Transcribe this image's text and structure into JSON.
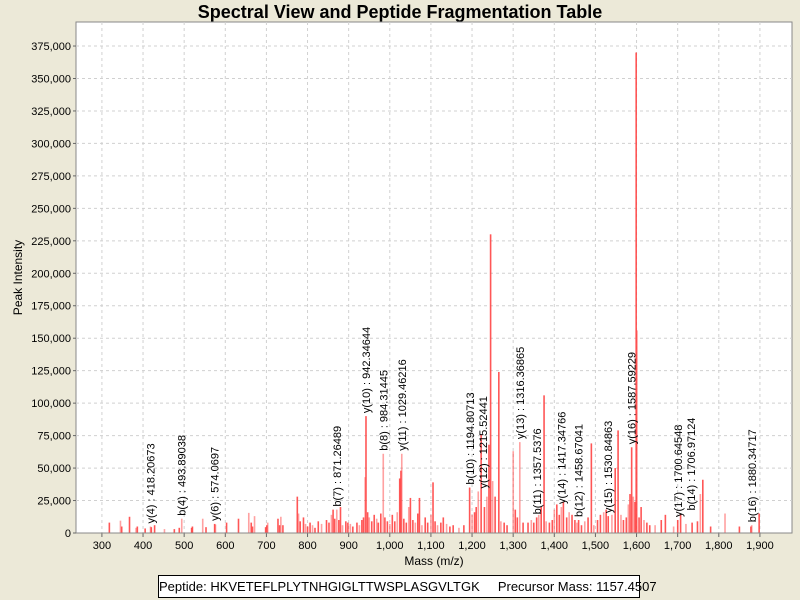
{
  "chart_data": {
    "type": "bar",
    "title": "Spectral View and Peptide Fragmentation Table",
    "xlabel": "Mass (m/z)",
    "ylabel": "Peak Intensity",
    "xlim": [
      237,
      1978
    ],
    "ylim": [
      0,
      393500
    ],
    "grid": true,
    "bar_color": "#ff4444",
    "x_ticks": [
      300,
      400,
      500,
      600,
      700,
      800,
      900,
      1000,
      1100,
      1200,
      1300,
      1400,
      1500,
      1600,
      1700,
      1800,
      1900
    ],
    "x_tick_labels": [
      "300",
      "400",
      "500",
      "600",
      "700",
      "800",
      "900",
      "1,000",
      "1,100",
      "1,200",
      "1,300",
      "1,400",
      "1,500",
      "1,600",
      "1,700",
      "1,800",
      "1,900"
    ],
    "y_ticks": [
      0,
      25000,
      50000,
      75000,
      100000,
      125000,
      150000,
      175000,
      200000,
      225000,
      250000,
      275000,
      300000,
      325000,
      350000,
      375000
    ],
    "y_tick_labels": [
      "0",
      "25,000",
      "50,000",
      "75,000",
      "100,000",
      "125,000",
      "150,000",
      "175,000",
      "200,000",
      "225,000",
      "250,000",
      "275,000",
      "300,000",
      "325,000",
      "350,000",
      "375,000"
    ],
    "peaks": [
      [
        318,
        8000
      ],
      [
        345,
        9500
      ],
      [
        348,
        5000
      ],
      [
        367,
        12500
      ],
      [
        383,
        4000
      ],
      [
        386,
        5000
      ],
      [
        405,
        3500
      ],
      [
        418,
        5000
      ],
      [
        420,
        4500
      ],
      [
        428,
        6000
      ],
      [
        452,
        3000
      ],
      [
        476,
        3000
      ],
      [
        488,
        4000
      ],
      [
        494,
        11000
      ],
      [
        518,
        4000
      ],
      [
        520,
        5000
      ],
      [
        545,
        11000
      ],
      [
        553,
        4500
      ],
      [
        574,
        7000
      ],
      [
        576,
        6500
      ],
      [
        603,
        8000
      ],
      [
        632,
        11000
      ],
      [
        657,
        15500
      ],
      [
        663,
        8000
      ],
      [
        666,
        5000
      ],
      [
        671,
        13000
      ],
      [
        698,
        4500
      ],
      [
        701,
        6000
      ],
      [
        703,
        8000
      ],
      [
        728,
        11000
      ],
      [
        732,
        6000
      ],
      [
        735,
        12500
      ],
      [
        740,
        6000
      ],
      [
        775,
        28000
      ],
      [
        778,
        15000
      ],
      [
        782,
        9000
      ],
      [
        790,
        12000
      ],
      [
        795,
        7000
      ],
      [
        800,
        5000
      ],
      [
        806,
        8000
      ],
      [
        812,
        6000
      ],
      [
        818,
        4000
      ],
      [
        826,
        9000
      ],
      [
        834,
        7000
      ],
      [
        846,
        10000
      ],
      [
        852,
        8000
      ],
      [
        858,
        14000
      ],
      [
        862,
        18000
      ],
      [
        866,
        11000
      ],
      [
        871,
        18000
      ],
      [
        876,
        10000
      ],
      [
        880,
        20000
      ],
      [
        885,
        6000
      ],
      [
        893,
        9000
      ],
      [
        898,
        8000
      ],
      [
        904,
        7000
      ],
      [
        910,
        5000
      ],
      [
        920,
        8000
      ],
      [
        926,
        6000
      ],
      [
        932,
        10000
      ],
      [
        936,
        12000
      ],
      [
        940,
        43000
      ],
      [
        942,
        90000
      ],
      [
        946,
        16000
      ],
      [
        950,
        12000
      ],
      [
        956,
        9000
      ],
      [
        962,
        14000
      ],
      [
        968,
        11000
      ],
      [
        972,
        8000
      ],
      [
        978,
        15000
      ],
      [
        984,
        61000
      ],
      [
        988,
        12000
      ],
      [
        994,
        9000
      ],
      [
        1000,
        7000
      ],
      [
        1006,
        14000
      ],
      [
        1012,
        9000
      ],
      [
        1018,
        16000
      ],
      [
        1024,
        42000
      ],
      [
        1027,
        48000
      ],
      [
        1029,
        61000
      ],
      [
        1034,
        11000
      ],
      [
        1040,
        8000
      ],
      [
        1046,
        20000
      ],
      [
        1050,
        27000
      ],
      [
        1056,
        10000
      ],
      [
        1062,
        8000
      ],
      [
        1068,
        15000
      ],
      [
        1072,
        27000
      ],
      [
        1078,
        6000
      ],
      [
        1086,
        12000
      ],
      [
        1092,
        8000
      ],
      [
        1100,
        14000
      ],
      [
        1105,
        39000
      ],
      [
        1110,
        9000
      ],
      [
        1116,
        6000
      ],
      [
        1124,
        8000
      ],
      [
        1130,
        12000
      ],
      [
        1138,
        7000
      ],
      [
        1146,
        5000
      ],
      [
        1154,
        6000
      ],
      [
        1168,
        4000
      ],
      [
        1180,
        6000
      ],
      [
        1194,
        35000
      ],
      [
        1200,
        14000
      ],
      [
        1206,
        16000
      ],
      [
        1210,
        20000
      ],
      [
        1215,
        32000
      ],
      [
        1222,
        76000
      ],
      [
        1230,
        20000
      ],
      [
        1236,
        28000
      ],
      [
        1241,
        68000
      ],
      [
        1245,
        230000
      ],
      [
        1250,
        40000
      ],
      [
        1256,
        28000
      ],
      [
        1265,
        124000
      ],
      [
        1270,
        9000
      ],
      [
        1278,
        8000
      ],
      [
        1285,
        6000
      ],
      [
        1300,
        63000
      ],
      [
        1305,
        18000
      ],
      [
        1310,
        12000
      ],
      [
        1316,
        70000
      ],
      [
        1324,
        8000
      ],
      [
        1336,
        8000
      ],
      [
        1344,
        10000
      ],
      [
        1350,
        8000
      ],
      [
        1357,
        12000
      ],
      [
        1362,
        14000
      ],
      [
        1368,
        20000
      ],
      [
        1375,
        106000
      ],
      [
        1380,
        9000
      ],
      [
        1388,
        8000
      ],
      [
        1395,
        10000
      ],
      [
        1400,
        18000
      ],
      [
        1406,
        22000
      ],
      [
        1412,
        14000
      ],
      [
        1417,
        20000
      ],
      [
        1422,
        24000
      ],
      [
        1430,
        12000
      ],
      [
        1436,
        16000
      ],
      [
        1443,
        14000
      ],
      [
        1450,
        10000
      ],
      [
        1455,
        8000
      ],
      [
        1459,
        10000
      ],
      [
        1466,
        6000
      ],
      [
        1474,
        9000
      ],
      [
        1482,
        12000
      ],
      [
        1490,
        69000
      ],
      [
        1496,
        6000
      ],
      [
        1505,
        10000
      ],
      [
        1512,
        14000
      ],
      [
        1520,
        16000
      ],
      [
        1526,
        18000
      ],
      [
        1531,
        13000
      ],
      [
        1540,
        14000
      ],
      [
        1548,
        50000
      ],
      [
        1555,
        79000
      ],
      [
        1562,
        14000
      ],
      [
        1568,
        10000
      ],
      [
        1575,
        12000
      ],
      [
        1580,
        22000
      ],
      [
        1584,
        30000
      ],
      [
        1588,
        66000
      ],
      [
        1592,
        28000
      ],
      [
        1596,
        24000
      ],
      [
        1599,
        370000
      ],
      [
        1601,
        156000
      ],
      [
        1606,
        12000
      ],
      [
        1611,
        20000
      ],
      [
        1618,
        10000
      ],
      [
        1625,
        8000
      ],
      [
        1632,
        6000
      ],
      [
        1645,
        6000
      ],
      [
        1660,
        10000
      ],
      [
        1670,
        14000
      ],
      [
        1690,
        5000
      ],
      [
        1700,
        10000
      ],
      [
        1707,
        15000
      ],
      [
        1720,
        7000
      ],
      [
        1735,
        8000
      ],
      [
        1748,
        9000
      ],
      [
        1755,
        30000
      ],
      [
        1761,
        41000
      ],
      [
        1780,
        5000
      ],
      [
        1815,
        15000
      ],
      [
        1850,
        5000
      ],
      [
        1878,
        5000
      ],
      [
        1880,
        6000
      ],
      [
        1898,
        15000
      ]
    ],
    "annotations": [
      {
        "mz": 418.20673,
        "label": "y(4) : 418.20673"
      },
      {
        "mz": 493.89038,
        "label": "b(4) : 493.89038"
      },
      {
        "mz": 574.0697,
        "label": "y(6) : 574.0697"
      },
      {
        "mz": 871.26489,
        "label": "b(7) : 871.26489"
      },
      {
        "mz": 942.34644,
        "label": "y(10) : 942.34644"
      },
      {
        "mz": 984.31445,
        "label": "b(8) : 984.31445"
      },
      {
        "mz": 1029.46216,
        "label": "y(11) : 1029.46216"
      },
      {
        "mz": 1194.80713,
        "label": "b(10) : 1194.80713"
      },
      {
        "mz": 1215.52441,
        "label": "y(12) : 1215.52441"
      },
      {
        "mz": 1316.36865,
        "label": "y(13) : 1316.36865"
      },
      {
        "mz": 1357.5376,
        "label": "b(11) : 1357.5376"
      },
      {
        "mz": 1417.34766,
        "label": "y(14) : 1417.34766"
      },
      {
        "mz": 1458.67041,
        "label": "b(12) : 1458.67041"
      },
      {
        "mz": 1530.84863,
        "label": "y(15) : 1530.84863"
      },
      {
        "mz": 1587.59229,
        "label": "y(16) : 1587.59229"
      },
      {
        "mz": 1700.64548,
        "label": "y(17) : 1700.64548"
      },
      {
        "mz": 1706.97124,
        "label": "b(14) : 1706.97124"
      },
      {
        "mz": 1880.34717,
        "label": "b(16) : 1880.34717"
      }
    ]
  },
  "legend": {
    "peptide_label": "Peptide: HKVETEFLPLYTNHGIGLTTWSPLASGVLTGK",
    "precursor_label": "Precursor Mass: 1157.4507"
  }
}
